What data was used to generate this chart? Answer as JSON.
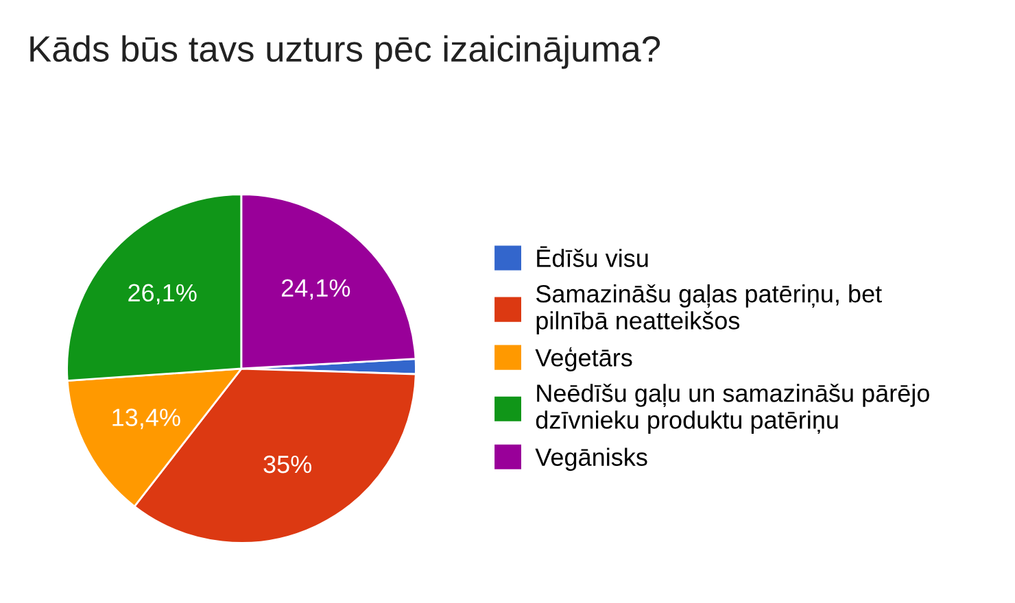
{
  "chart_data": {
    "type": "pie",
    "title": "Kāds būs tavs uzturs pēc izaicinājuma?",
    "categories": [
      "Ēdīšu visu",
      "Samazināšu gaļas patēriņu, bet\npilnībā neatteikšos",
      "Veģetārs",
      "Neēdīšu gaļu un samazināšu pārējo\ndzīvnieku produktu patēriņu",
      "Vegānisks"
    ],
    "values": [
      1.4,
      35,
      13.4,
      26.1,
      24.1
    ],
    "value_labels": [
      null,
      "35%",
      "13,4%",
      "26,1%",
      "24,1%"
    ],
    "colors": [
      "#3366cc",
      "#dc3912",
      "#ff9900",
      "#109618",
      "#990099"
    ],
    "legend": "right"
  }
}
